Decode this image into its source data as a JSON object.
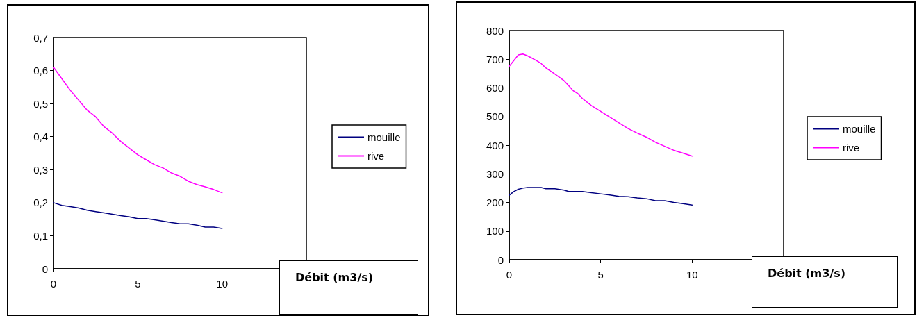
{
  "chart_data": [
    {
      "type": "line",
      "xlabel": "Débit (m3/s)",
      "x": [
        0,
        0.5,
        1,
        1.5,
        2,
        2.5,
        3,
        3.5,
        4,
        4.5,
        5,
        5.5,
        6,
        6.5,
        7,
        7.5,
        8,
        8.5,
        9,
        9.5,
        10
      ],
      "series": [
        {
          "name": "mouille",
          "color": "#000080",
          "values": [
            0.2,
            0.192,
            0.188,
            0.184,
            0.177,
            0.173,
            0.169,
            0.165,
            0.161,
            0.157,
            0.152,
            0.152,
            0.148,
            0.144,
            0.14,
            0.136,
            0.136,
            0.132,
            0.126,
            0.126,
            0.122
          ]
        },
        {
          "name": "rive",
          "color": "#ff00ff",
          "values": [
            0.61,
            0.575,
            0.54,
            0.51,
            0.48,
            0.46,
            0.43,
            0.41,
            0.385,
            0.365,
            0.345,
            0.33,
            0.315,
            0.305,
            0.29,
            0.28,
            0.265,
            0.255,
            0.248,
            0.24,
            0.23
          ]
        }
      ],
      "xlim": [
        0,
        15
      ],
      "xticks": [
        0,
        5,
        10
      ],
      "ylim": [
        0,
        0.7
      ],
      "yticks": [
        {
          "value": 0,
          "label": "0"
        },
        {
          "value": 0.1,
          "label": "0,1"
        },
        {
          "value": 0.2,
          "label": "0,2"
        },
        {
          "value": 0.3,
          "label": "0,3"
        },
        {
          "value": 0.4,
          "label": "0,4"
        },
        {
          "value": 0.5,
          "label": "0,5"
        },
        {
          "value": 0.6,
          "label": "0,6"
        },
        {
          "value": 0.7,
          "label": "0,7"
        }
      ],
      "grid": false,
      "legend": "right",
      "marker": "none",
      "line_style": "solid"
    },
    {
      "type": "line",
      "xlabel": "Débit (m3/s)",
      "x": [
        0,
        0.25,
        0.5,
        0.75,
        1,
        1.5,
        1.75,
        2,
        2.5,
        3,
        3.25,
        3.5,
        3.75,
        4,
        4.5,
        5,
        5.5,
        6,
        6.5,
        7,
        7.5,
        8,
        8.5,
        9,
        9.5,
        10
      ],
      "series": [
        {
          "name": "mouille",
          "color": "#000080",
          "values": [
            225,
            238,
            246,
            250,
            252,
            252,
            252,
            248,
            248,
            243,
            238,
            238,
            238,
            238,
            234,
            230,
            226,
            221,
            220,
            216,
            213,
            206,
            206,
            200,
            196,
            191
          ]
        },
        {
          "name": "rive",
          "color": "#ff00ff",
          "values": [
            675,
            695,
            715,
            718,
            712,
            695,
            685,
            670,
            648,
            625,
            608,
            590,
            580,
            563,
            538,
            518,
            498,
            478,
            458,
            442,
            428,
            410,
            396,
            382,
            372,
            362
          ]
        }
      ],
      "xlim": [
        0,
        15
      ],
      "xticks": [
        0,
        5,
        10
      ],
      "ylim": [
        0,
        800
      ],
      "yticks": [
        0,
        100,
        200,
        300,
        400,
        500,
        600,
        700,
        800
      ],
      "grid": false,
      "legend": "right",
      "marker": "none",
      "line_style": "solid"
    }
  ]
}
